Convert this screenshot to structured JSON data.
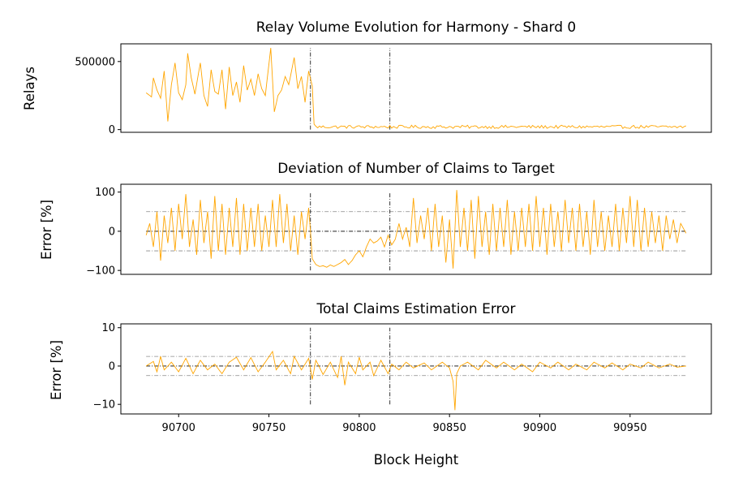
{
  "chart_data": [
    {
      "type": "line",
      "title": "Relay Volume Evolution for Harmony - Shard 0",
      "xlabel": "",
      "ylabel": "Relays",
      "xlim": [
        90668,
        90995
      ],
      "ylim": [
        -20000,
        630000
      ],
      "yticks": [
        0,
        500000
      ],
      "ytick_labels": [
        "0",
        "500000"
      ],
      "show_xticks": false,
      "grid": false,
      "colors": {
        "series": "#FFA500",
        "vline": "#000000"
      },
      "vlines": [
        90773,
        90817
      ],
      "vline_span": [
        0,
        600000
      ],
      "hlines": [],
      "x_range": [
        90682,
        90981
      ],
      "anchors": [
        [
          90682,
          270000
        ],
        [
          90685,
          240000
        ],
        [
          90686,
          380000
        ],
        [
          90688,
          290000
        ],
        [
          90690,
          230000
        ],
        [
          90692,
          430000
        ],
        [
          90694,
          60000
        ],
        [
          90696,
          330000
        ],
        [
          90698,
          490000
        ],
        [
          90700,
          270000
        ],
        [
          90702,
          220000
        ],
        [
          90704,
          330000
        ],
        [
          90705,
          560000
        ],
        [
          90707,
          380000
        ],
        [
          90709,
          260000
        ],
        [
          90712,
          490000
        ],
        [
          90714,
          250000
        ],
        [
          90716,
          170000
        ],
        [
          90718,
          440000
        ],
        [
          90720,
          280000
        ],
        [
          90722,
          260000
        ],
        [
          90724,
          440000
        ],
        [
          90726,
          150000
        ],
        [
          90728,
          460000
        ],
        [
          90730,
          250000
        ],
        [
          90732,
          350000
        ],
        [
          90734,
          200000
        ],
        [
          90736,
          470000
        ],
        [
          90738,
          290000
        ],
        [
          90740,
          370000
        ],
        [
          90742,
          250000
        ],
        [
          90744,
          410000
        ],
        [
          90746,
          300000
        ],
        [
          90748,
          250000
        ],
        [
          90751,
          600000
        ],
        [
          90753,
          130000
        ],
        [
          90755,
          250000
        ],
        [
          90757,
          290000
        ],
        [
          90759,
          390000
        ],
        [
          90761,
          330000
        ],
        [
          90764,
          530000
        ],
        [
          90766,
          300000
        ],
        [
          90768,
          390000
        ],
        [
          90770,
          200000
        ],
        [
          90772,
          430000
        ],
        [
          90774,
          320000
        ],
        [
          90775,
          40000
        ],
        [
          90776,
          25000
        ],
        [
          90981,
          20000
        ]
      ],
      "noise": {
        "start": 90776,
        "step": 1,
        "mean": 20000,
        "amp": 12000,
        "min": 3000
      }
    },
    {
      "type": "line",
      "title": "Deviation of Number of Claims to Target",
      "xlabel": "",
      "ylabel": "Error [%]",
      "xlim": [
        90668,
        90995
      ],
      "ylim": [
        -110,
        120
      ],
      "yticks": [
        -100,
        0,
        100
      ],
      "ytick_labels": [
        "−100",
        "0",
        "100"
      ],
      "show_xticks": false,
      "grid": false,
      "colors": {
        "series": "#FFA500",
        "vline": "#000000",
        "hline": "#000000",
        "band": "#888888"
      },
      "vlines": [
        90773,
        90817
      ],
      "vline_span": [
        -100,
        100
      ],
      "hlines": [
        {
          "y": 0,
          "style": "dashdot",
          "color": "#000000"
        },
        {
          "y": 50,
          "style": "dashdot",
          "color": "#888888"
        },
        {
          "y": -50,
          "style": "dashdot",
          "color": "#888888"
        }
      ],
      "x_range": [
        90682,
        90981
      ],
      "anchors": [
        [
          90682,
          -10
        ],
        [
          90684,
          20
        ],
        [
          90686,
          -40
        ],
        [
          90688,
          50
        ],
        [
          90690,
          -75
        ],
        [
          90692,
          40
        ],
        [
          90694,
          -30
        ],
        [
          90696,
          60
        ],
        [
          90698,
          -50
        ],
        [
          90700,
          70
        ],
        [
          90702,
          -20
        ],
        [
          90704,
          95
        ],
        [
          90706,
          -40
        ],
        [
          90708,
          30
        ],
        [
          90710,
          -60
        ],
        [
          90712,
          80
        ],
        [
          90714,
          -30
        ],
        [
          90716,
          50
        ],
        [
          90718,
          -70
        ],
        [
          90720,
          90
        ],
        [
          90722,
          -50
        ],
        [
          90724,
          70
        ],
        [
          90726,
          -60
        ],
        [
          90728,
          60
        ],
        [
          90730,
          -40
        ],
        [
          90732,
          85
        ],
        [
          90734,
          -60
        ],
        [
          90736,
          70
        ],
        [
          90738,
          -50
        ],
        [
          90740,
          60
        ],
        [
          90742,
          -40
        ],
        [
          90744,
          70
        ],
        [
          90746,
          -50
        ],
        [
          90748,
          40
        ],
        [
          90750,
          -40
        ],
        [
          90752,
          80
        ],
        [
          90754,
          -40
        ],
        [
          90756,
          95
        ],
        [
          90758,
          -30
        ],
        [
          90760,
          70
        ],
        [
          90762,
          -50
        ],
        [
          90764,
          40
        ],
        [
          90766,
          -60
        ],
        [
          90768,
          50
        ],
        [
          90770,
          -20
        ],
        [
          90772,
          60
        ],
        [
          90773,
          0
        ],
        [
          90774,
          -70
        ],
        [
          90776,
          -85
        ],
        [
          90778,
          -90
        ],
        [
          90780,
          -88
        ],
        [
          90782,
          -92
        ],
        [
          90784,
          -86
        ],
        [
          90786,
          -90
        ],
        [
          90788,
          -85
        ],
        [
          90790,
          -80
        ],
        [
          90792,
          -72
        ],
        [
          90794,
          -85
        ],
        [
          90796,
          -75
        ],
        [
          90798,
          -60
        ],
        [
          90800,
          -50
        ],
        [
          90802,
          -65
        ],
        [
          90804,
          -40
        ],
        [
          90806,
          -20
        ],
        [
          90808,
          -30
        ],
        [
          90810,
          -25
        ],
        [
          90812,
          -15
        ],
        [
          90814,
          -40
        ],
        [
          90816,
          -10
        ],
        [
          90818,
          -35
        ],
        [
          90820,
          -20
        ],
        [
          90822,
          20
        ],
        [
          90824,
          -20
        ],
        [
          90826,
          10
        ],
        [
          90828,
          -40
        ],
        [
          90830,
          85
        ],
        [
          90832,
          -30
        ],
        [
          90834,
          40
        ],
        [
          90836,
          -20
        ],
        [
          90838,
          60
        ],
        [
          90840,
          -50
        ],
        [
          90842,
          70
        ],
        [
          90844,
          -40
        ],
        [
          90846,
          40
        ],
        [
          90848,
          -80
        ],
        [
          90850,
          30
        ],
        [
          90852,
          -95
        ],
        [
          90854,
          105
        ],
        [
          90856,
          -40
        ],
        [
          90858,
          60
        ],
        [
          90860,
          -50
        ],
        [
          90862,
          80
        ],
        [
          90864,
          -70
        ],
        [
          90866,
          90
        ],
        [
          90868,
          -40
        ],
        [
          90870,
          50
        ],
        [
          90872,
          -60
        ],
        [
          90874,
          70
        ],
        [
          90876,
          -50
        ],
        [
          90878,
          60
        ],
        [
          90880,
          -40
        ],
        [
          90882,
          80
        ],
        [
          90884,
          -60
        ],
        [
          90886,
          50
        ],
        [
          90888,
          -50
        ],
        [
          90890,
          60
        ],
        [
          90892,
          -40
        ],
        [
          90894,
          70
        ],
        [
          90896,
          -50
        ],
        [
          90898,
          90
        ],
        [
          90900,
          -40
        ],
        [
          90902,
          60
        ],
        [
          90904,
          -60
        ],
        [
          90906,
          70
        ],
        [
          90908,
          -40
        ],
        [
          90910,
          50
        ],
        [
          90912,
          -50
        ],
        [
          90914,
          80
        ],
        [
          90916,
          -30
        ],
        [
          90918,
          60
        ],
        [
          90920,
          -50
        ],
        [
          90922,
          70
        ],
        [
          90924,
          -40
        ],
        [
          90926,
          50
        ],
        [
          90928,
          -60
        ],
        [
          90930,
          80
        ],
        [
          90932,
          -40
        ],
        [
          90934,
          50
        ],
        [
          90936,
          -50
        ],
        [
          90938,
          40
        ],
        [
          90940,
          -40
        ],
        [
          90942,
          70
        ],
        [
          90944,
          -50
        ],
        [
          90946,
          60
        ],
        [
          90948,
          -30
        ],
        [
          90950,
          90
        ],
        [
          90952,
          -40
        ],
        [
          90954,
          80
        ],
        [
          90956,
          -50
        ],
        [
          90958,
          60
        ],
        [
          90960,
          -40
        ],
        [
          90962,
          50
        ],
        [
          90964,
          -30
        ],
        [
          90966,
          40
        ],
        [
          90968,
          -50
        ],
        [
          90970,
          40
        ],
        [
          90972,
          -20
        ],
        [
          90974,
          30
        ],
        [
          90976,
          -30
        ],
        [
          90978,
          20
        ],
        [
          90981,
          -5
        ]
      ]
    },
    {
      "type": "line",
      "title": "Total Claims Estimation Error",
      "xlabel": "Block Height",
      "ylabel": "Error [%]",
      "xlim": [
        90668,
        90995
      ],
      "ylim": [
        -12.5,
        11
      ],
      "yticks": [
        -10,
        0,
        10
      ],
      "ytick_labels": [
        "−10",
        "0",
        "10"
      ],
      "xticks": [
        90700,
        90750,
        90800,
        90850,
        90900,
        90950
      ],
      "xtick_labels": [
        "90700",
        "90750",
        "90800",
        "90850",
        "90900",
        "90950"
      ],
      "show_xticks": true,
      "grid": false,
      "colors": {
        "series": "#FFA500",
        "vline": "#000000",
        "hline": "#000000",
        "band": "#888888"
      },
      "vlines": [
        90773,
        90817
      ],
      "vline_span": [
        -10,
        10
      ],
      "hlines": [
        {
          "y": 0,
          "style": "dashdot",
          "color": "#000000"
        },
        {
          "y": 2.5,
          "style": "dashdot",
          "color": "#888888"
        },
        {
          "y": -2.5,
          "style": "dashdot",
          "color": "#888888"
        }
      ],
      "x_range": [
        90682,
        90981
      ],
      "anchors": [
        [
          90682,
          0
        ],
        [
          90686,
          1.2
        ],
        [
          90688,
          -1.5
        ],
        [
          90690,
          2.5
        ],
        [
          90692,
          -1
        ],
        [
          90696,
          1
        ],
        [
          90700,
          -1.5
        ],
        [
          90704,
          2
        ],
        [
          90708,
          -2
        ],
        [
          90712,
          1.5
        ],
        [
          90716,
          -1
        ],
        [
          90720,
          0.5
        ],
        [
          90724,
          -2
        ],
        [
          90728,
          1
        ],
        [
          90732,
          2.3
        ],
        [
          90736,
          -1
        ],
        [
          90740,
          2.2
        ],
        [
          90744,
          -1.5
        ],
        [
          90748,
          1
        ],
        [
          90752,
          3.8
        ],
        [
          90754,
          -1
        ],
        [
          90758,
          1.5
        ],
        [
          90762,
          -2
        ],
        [
          90764,
          2.5
        ],
        [
          90768,
          -1
        ],
        [
          90772,
          2
        ],
        [
          90774,
          -3.5
        ],
        [
          90776,
          1.5
        ],
        [
          90780,
          -2.2
        ],
        [
          90784,
          1
        ],
        [
          90788,
          -3
        ],
        [
          90790,
          2.5
        ],
        [
          90792,
          -5
        ],
        [
          90794,
          1
        ],
        [
          90798,
          -2
        ],
        [
          90800,
          2.3
        ],
        [
          90802,
          -1
        ],
        [
          90806,
          1
        ],
        [
          90808,
          -2.5
        ],
        [
          90812,
          1.5
        ],
        [
          90816,
          -2
        ],
        [
          90818,
          0.5
        ],
        [
          90822,
          -1
        ],
        [
          90826,
          1
        ],
        [
          90830,
          -0.5
        ],
        [
          90836,
          0.8
        ],
        [
          90840,
          -1
        ],
        [
          90846,
          1
        ],
        [
          90850,
          -0.5
        ],
        [
          90852,
          -4
        ],
        [
          90853,
          -11.5
        ],
        [
          90854,
          -2
        ],
        [
          90856,
          0
        ],
        [
          90860,
          1
        ],
        [
          90866,
          -1
        ],
        [
          90870,
          1.5
        ],
        [
          90876,
          -0.5
        ],
        [
          90880,
          1
        ],
        [
          90886,
          -1
        ],
        [
          90890,
          0.5
        ],
        [
          90896,
          -1.5
        ],
        [
          90900,
          1
        ],
        [
          90906,
          -0.5
        ],
        [
          90910,
          1
        ],
        [
          90916,
          -1
        ],
        [
          90920,
          0.5
        ],
        [
          90926,
          -1
        ],
        [
          90930,
          1
        ],
        [
          90936,
          -0.5
        ],
        [
          90940,
          0.8
        ],
        [
          90946,
          -1
        ],
        [
          90950,
          0.5
        ],
        [
          90956,
          -0.5
        ],
        [
          90960,
          1
        ],
        [
          90966,
          -0.5
        ],
        [
          90972,
          0.5
        ],
        [
          90976,
          -0.3
        ],
        [
          90981,
          0
        ]
      ]
    }
  ]
}
